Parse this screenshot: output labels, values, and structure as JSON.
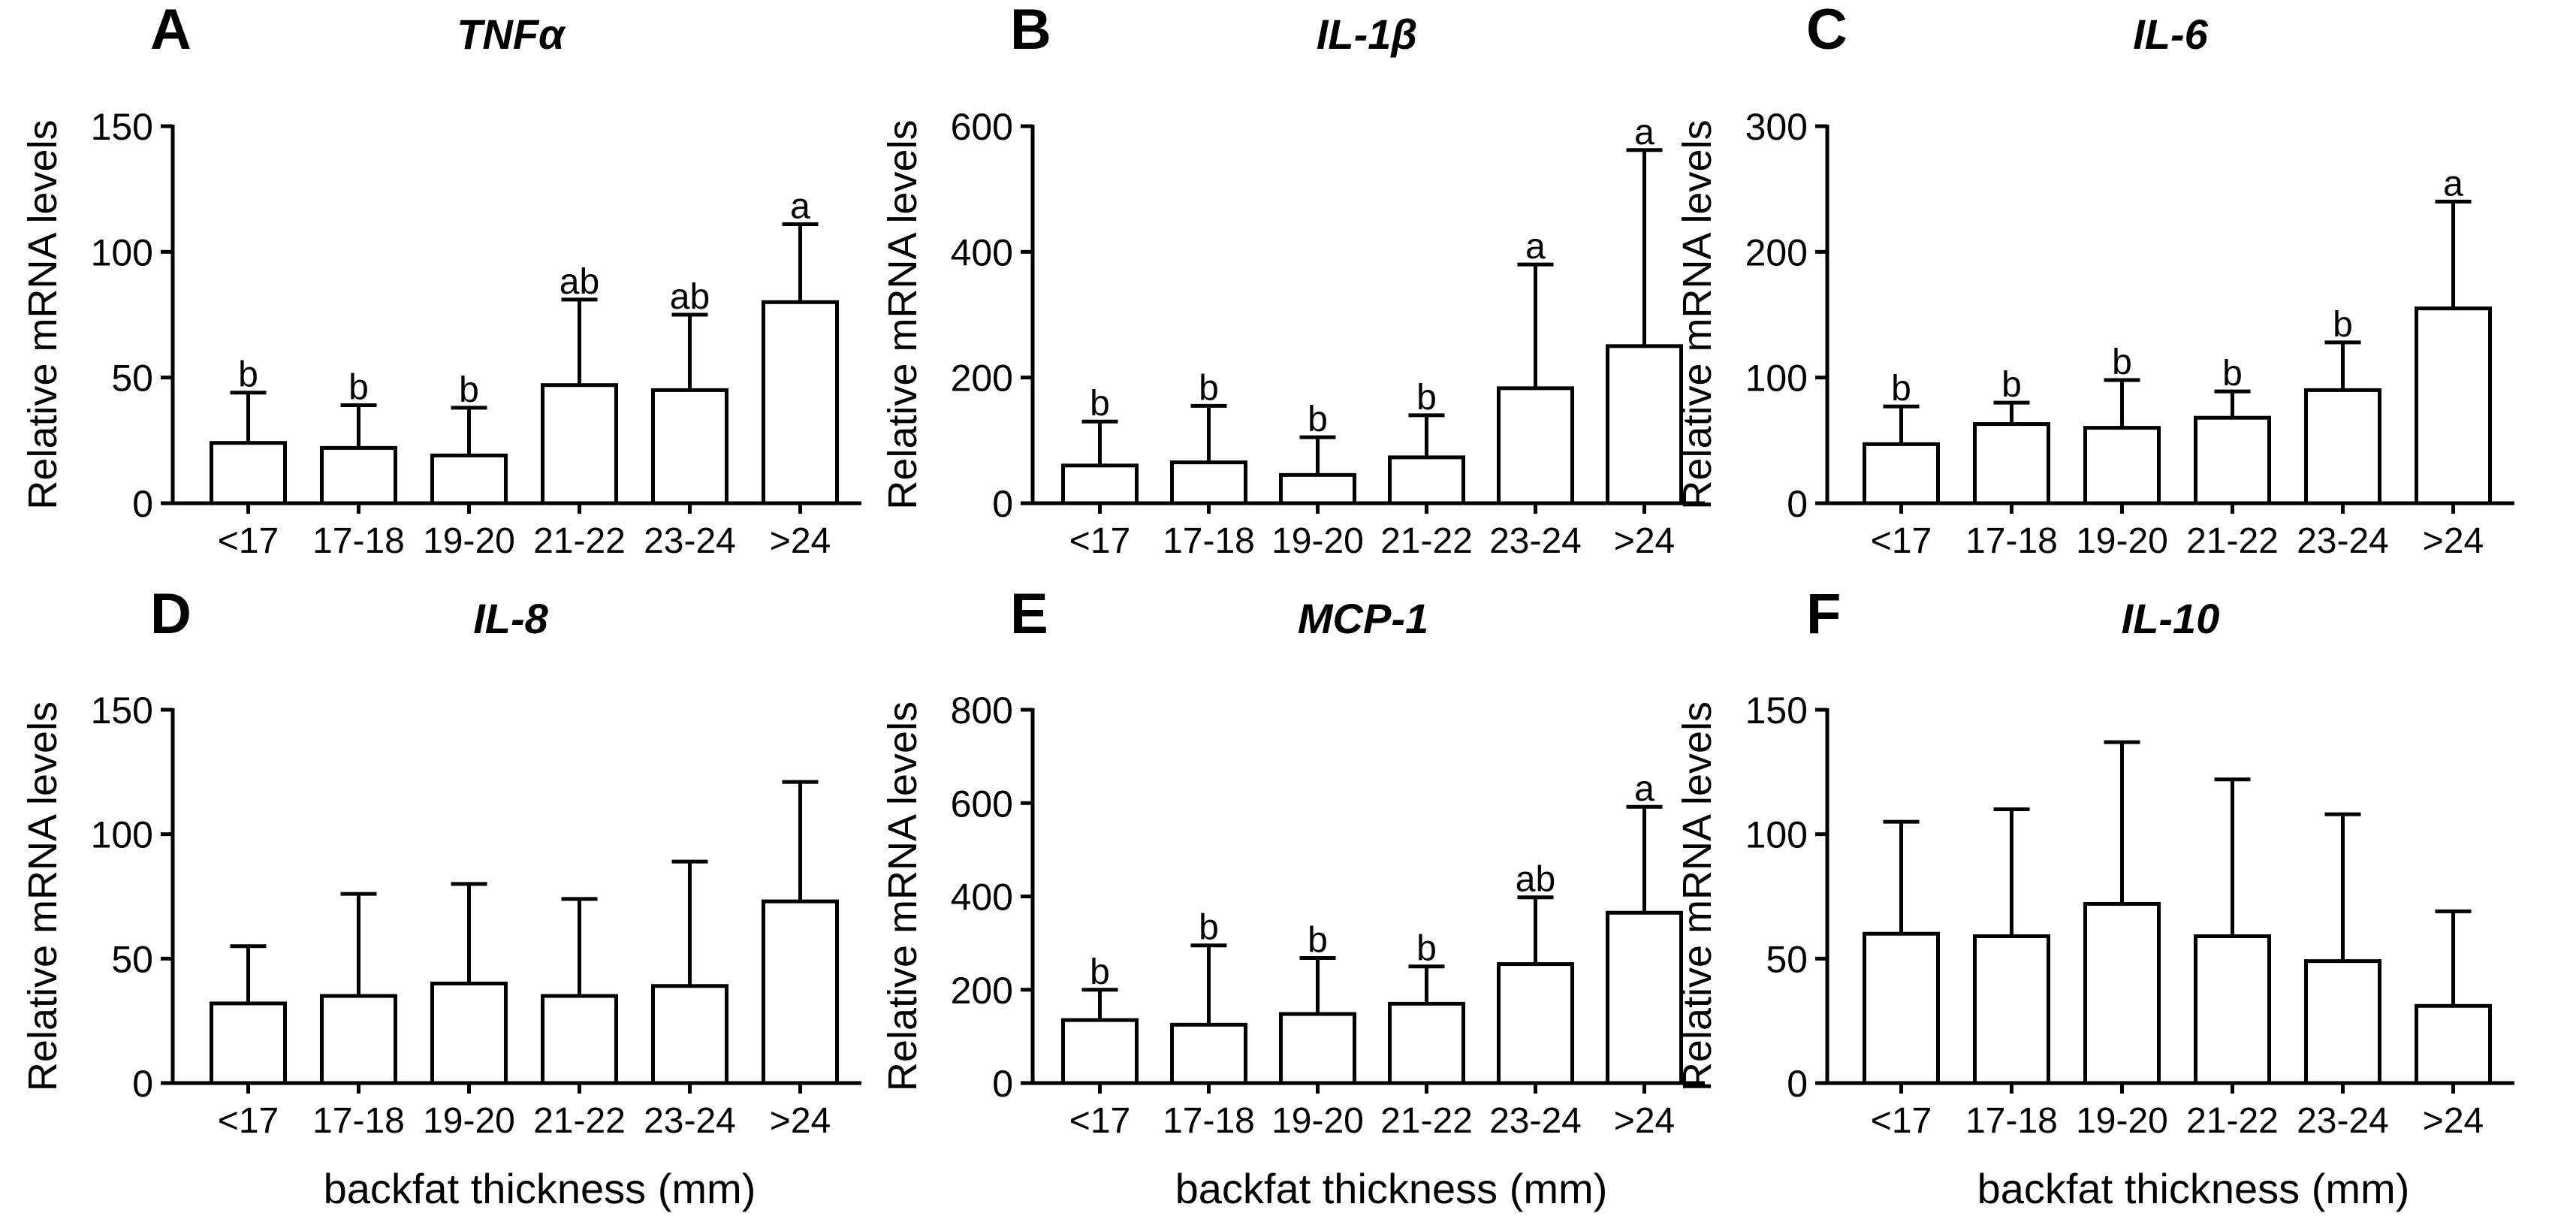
{
  "chart_data": [
    {
      "panel": "A",
      "type": "bar",
      "title": "TNFα",
      "xlabel": "",
      "ylabel": "Relative mRNA levels",
      "categories": [
        "<17",
        "17-18",
        "19-20",
        "21-22",
        "23-24",
        ">24"
      ],
      "ylim": [
        0,
        150
      ],
      "yticks": [
        0,
        50,
        100,
        150
      ],
      "values": [
        24,
        22,
        19,
        47,
        45,
        80
      ],
      "error_upper": [
        44,
        39,
        38,
        81,
        75,
        111
      ],
      "significance": [
        "b",
        "b",
        "b",
        "ab",
        "ab",
        "a"
      ]
    },
    {
      "panel": "B",
      "type": "bar",
      "title": "IL-1β",
      "xlabel": "",
      "ylabel": "Relative mRNA levels",
      "categories": [
        "<17",
        "17-18",
        "19-20",
        "21-22",
        "23-24",
        ">24"
      ],
      "ylim": [
        0,
        600
      ],
      "yticks": [
        0,
        200,
        400,
        600
      ],
      "values": [
        60,
        65,
        45,
        73,
        183,
        250
      ],
      "error_upper": [
        130,
        155,
        105,
        140,
        380,
        562
      ],
      "significance": [
        "b",
        "b",
        "b",
        "b",
        "a",
        "a"
      ]
    },
    {
      "panel": "C",
      "type": "bar",
      "title": "IL-6",
      "xlabel": "",
      "ylabel": "Relative mRNA levels",
      "categories": [
        "<17",
        "17-18",
        "19-20",
        "21-22",
        "23-24",
        ">24"
      ],
      "ylim": [
        0,
        300
      ],
      "yticks": [
        0,
        100,
        200,
        300
      ],
      "values": [
        47,
        63,
        60,
        68,
        90,
        155
      ],
      "error_upper": [
        77,
        80,
        98,
        89,
        128,
        240
      ],
      "significance": [
        "b",
        "b",
        "b",
        "b",
        "b",
        "a"
      ]
    },
    {
      "panel": "D",
      "type": "bar",
      "title": "IL-8",
      "xlabel": "backfat thickness (mm)",
      "ylabel": "Relative mRNA levels",
      "categories": [
        "<17",
        "17-18",
        "19-20",
        "21-22",
        "23-24",
        ">24"
      ],
      "ylim": [
        0,
        150
      ],
      "yticks": [
        0,
        50,
        100,
        150
      ],
      "values": [
        32,
        35,
        40,
        35,
        39,
        73
      ],
      "error_upper": [
        55,
        76,
        80,
        74,
        89,
        121
      ],
      "significance": [
        "",
        "",
        "",
        "",
        "",
        ""
      ]
    },
    {
      "panel": "E",
      "type": "bar",
      "title": "MCP-1",
      "xlabel": "backfat thickness (mm)",
      "ylabel": "Relative mRNA levels",
      "categories": [
        "<17",
        "17-18",
        "19-20",
        "21-22",
        "23-24",
        ">24"
      ],
      "ylim": [
        0,
        800
      ],
      "yticks": [
        0,
        200,
        400,
        600,
        800
      ],
      "values": [
        135,
        125,
        148,
        170,
        255,
        365
      ],
      "error_upper": [
        200,
        295,
        268,
        250,
        398,
        592
      ],
      "significance": [
        "b",
        "b",
        "b",
        "b",
        "ab",
        "a"
      ]
    },
    {
      "panel": "F",
      "type": "bar",
      "title": "IL-10",
      "xlabel": "backfat thickness (mm)",
      "ylabel": "Relative mRNA levels",
      "categories": [
        "<17",
        "17-18",
        "19-20",
        "21-22",
        "23-24",
        ">24"
      ],
      "ylim": [
        0,
        150
      ],
      "yticks": [
        0,
        50,
        100,
        150
      ],
      "values": [
        60,
        59,
        72,
        59,
        49,
        31
      ],
      "error_upper": [
        105,
        110,
        137,
        122,
        108,
        69
      ],
      "significance": [
        "",
        "",
        "",
        "",
        "",
        ""
      ]
    }
  ]
}
